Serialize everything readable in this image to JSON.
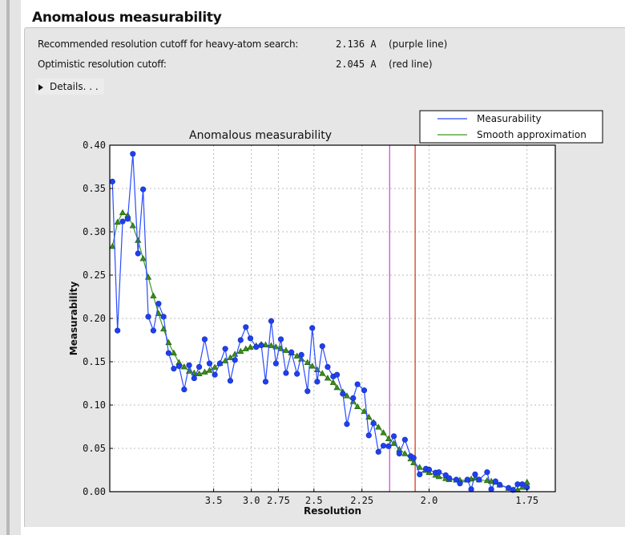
{
  "section": {
    "title": "Anomalous measurability",
    "rows": [
      {
        "label": "Recommended resolution cutoff for heavy-atom search:",
        "value": "2.136 A",
        "note": "(purple line)"
      },
      {
        "label": "Optimistic resolution cutoff:",
        "value": "2.045 A",
        "note": "(red line)"
      }
    ],
    "details_label": "Details. . ."
  },
  "chart_data": {
    "type": "line",
    "title": "Anomalous measurability",
    "xlabel": "Resolution",
    "ylabel": "Measurability",
    "x_scale": "1/d^2 (resolution decreasing to the right)",
    "xticks": [
      "3.5",
      "3.0",
      "2.75",
      "2.5",
      "2.25",
      "2.0",
      "1.75"
    ],
    "yticks": [
      "0.00",
      "0.05",
      "0.10",
      "0.15",
      "0.20",
      "0.25",
      "0.30",
      "0.35",
      "0.40"
    ],
    "ylim": [
      0,
      0.4
    ],
    "grid": true,
    "legend_position": "top-right, outside plot",
    "x": [
      19.88,
      12.37,
      9.75,
      8.3,
      7.35,
      6.66,
      6.14,
      5.72,
      5.38,
      5.09,
      4.85,
      4.64,
      4.45,
      4.28,
      4.13,
      4.0,
      3.88,
      3.77,
      3.66,
      3.57,
      3.48,
      3.4,
      3.32,
      3.25,
      3.19,
      3.12,
      3.06,
      3.01,
      2.95,
      2.9,
      2.86,
      2.81,
      2.77,
      2.73,
      2.69,
      2.65,
      2.61,
      2.58,
      2.54,
      2.51,
      2.48,
      2.45,
      2.42,
      2.39,
      2.37,
      2.34,
      2.32,
      2.29,
      2.27,
      2.24,
      2.22,
      2.2,
      2.18,
      2.16,
      2.14,
      2.12,
      2.1,
      2.08,
      2.06,
      2.05,
      2.03,
      2.01,
      2.0,
      1.98,
      1.97,
      1.95,
      1.94,
      1.92,
      1.91,
      1.89,
      1.88,
      1.87,
      1.86,
      1.84,
      1.83,
      1.82,
      1.81,
      1.79,
      1.78,
      1.77,
      1.76,
      1.75
    ],
    "series": [
      {
        "name": "Measurability",
        "color": "#1f3ff0",
        "marker": "circle",
        "values": [
          0.358,
          0.186,
          0.312,
          0.315,
          0.39,
          0.275,
          0.349,
          0.202,
          0.186,
          0.217,
          0.202,
          0.16,
          0.142,
          0.145,
          0.118,
          0.146,
          0.131,
          0.144,
          0.176,
          0.148,
          0.135,
          0.148,
          0.165,
          0.128,
          0.152,
          0.175,
          0.19,
          0.177,
          0.167,
          0.169,
          0.127,
          0.197,
          0.148,
          0.176,
          0.137,
          0.161,
          0.136,
          0.158,
          0.116,
          0.189,
          0.127,
          0.168,
          0.144,
          0.133,
          0.135,
          0.113,
          0.078,
          0.108,
          0.124,
          0.117,
          0.065,
          0.079,
          0.046,
          0.053,
          0.0525,
          0.064,
          0.044,
          0.06,
          0.041,
          0.039,
          0.02,
          0.0265,
          0.0255,
          0.022,
          0.0225,
          0.019,
          0.0157,
          0.0139,
          0.0095,
          0.0139,
          0.0028,
          0.02,
          0.0139,
          0.0225,
          0.0028,
          0.012,
          0.008,
          0.0043,
          0.002,
          0.0086,
          0.0086,
          0.005
        ]
      },
      {
        "name": "Smooth approximation",
        "color": "#3a8c1a",
        "marker": "triangle",
        "values": [
          0.283,
          0.311,
          0.322,
          0.319,
          0.307,
          0.29,
          0.269,
          0.2475,
          0.226,
          0.2056,
          0.1877,
          0.172,
          0.16,
          0.149,
          0.144,
          0.139,
          0.137,
          0.136,
          0.138,
          0.14,
          0.1435,
          0.148,
          0.151,
          0.1546,
          0.1586,
          0.162,
          0.1648,
          0.1667,
          0.1685,
          0.17,
          0.1694,
          0.1685,
          0.167,
          0.165,
          0.163,
          0.16,
          0.1565,
          0.153,
          0.149,
          0.1448,
          0.1407,
          0.1364,
          0.131,
          0.126,
          0.12,
          0.115,
          0.1105,
          0.104,
          0.098,
          0.0926,
          0.086,
          0.08,
          0.0744,
          0.068,
          0.061,
          0.0556,
          0.0488,
          0.0438,
          0.0377,
          0.0333,
          0.028,
          0.0244,
          0.022,
          0.019,
          0.0173,
          0.0151,
          0.0139,
          0.0133,
          0.0133,
          0.0133,
          0.0145,
          0.0157,
          0.0136,
          0.0127,
          0.012,
          0.0108,
          0.0077,
          0.004,
          0.002,
          0.002,
          0.005,
          0.0108
        ]
      }
    ],
    "vlines": [
      {
        "x": 2.136,
        "color": "#d040d0"
      },
      {
        "x": 2.045,
        "color": "#d03010"
      }
    ]
  }
}
